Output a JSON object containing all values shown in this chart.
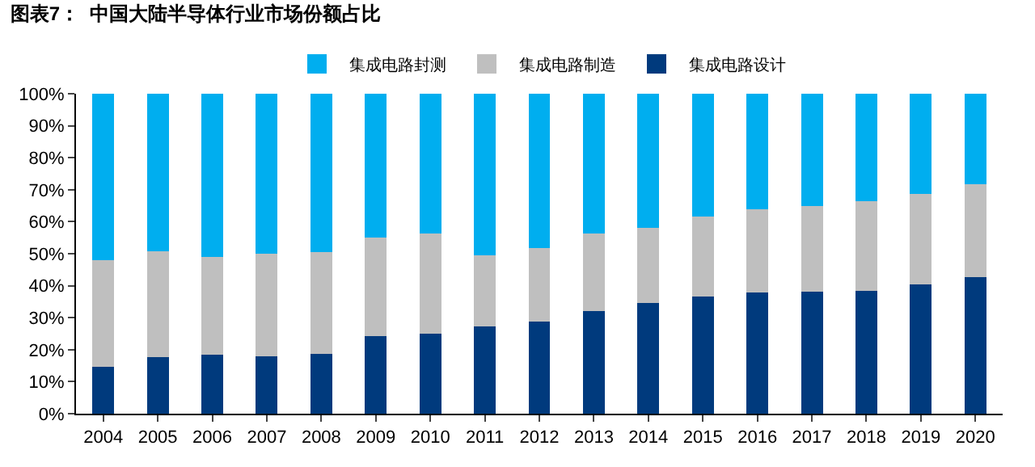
{
  "chart_data": {
    "type": "bar",
    "stacked": true,
    "title": "图表7：  中国大陆半导体行业市场份额占比",
    "categories": [
      "2004",
      "2005",
      "2006",
      "2007",
      "2008",
      "2009",
      "2010",
      "2011",
      "2012",
      "2013",
      "2014",
      "2015",
      "2016",
      "2017",
      "2018",
      "2019",
      "2020"
    ],
    "series": [
      {
        "name": "集成电路设计",
        "color": "#003a7d",
        "values": [
          14.6,
          17.6,
          18.4,
          17.9,
          18.7,
          24.2,
          25.0,
          27.2,
          28.8,
          32.0,
          34.6,
          36.5,
          37.8,
          38.1,
          38.4,
          40.5,
          42.6
        ]
      },
      {
        "name": "集成电路制造",
        "color": "#bfbfbf",
        "values": [
          33.4,
          33.1,
          30.7,
          32.0,
          31.7,
          30.8,
          31.2,
          22.4,
          23.0,
          24.2,
          23.6,
          25.1,
          26.0,
          26.9,
          28.0,
          28.1,
          29.1
        ]
      },
      {
        "name": "集成电路封测",
        "color": "#00aeef",
        "values": [
          52.0,
          49.3,
          50.9,
          50.1,
          49.6,
          45.0,
          43.8,
          50.4,
          48.2,
          43.8,
          41.8,
          38.4,
          36.2,
          35.0,
          33.6,
          31.4,
          28.3
        ]
      }
    ],
    "ylim": [
      0,
      100
    ],
    "yticks": [
      {
        "value": 0,
        "label": "0%"
      },
      {
        "value": 10,
        "label": "10%"
      },
      {
        "value": 20,
        "label": "20%"
      },
      {
        "value": 30,
        "label": "30%"
      },
      {
        "value": 40,
        "label": "40%"
      },
      {
        "value": 50,
        "label": "50%"
      },
      {
        "value": 60,
        "label": "60%"
      },
      {
        "value": 70,
        "label": "70%"
      },
      {
        "value": 80,
        "label": "80%"
      },
      {
        "value": 90,
        "label": "90%"
      },
      {
        "value": 100,
        "label": "100%"
      }
    ],
    "grid": false,
    "legend": "top"
  }
}
